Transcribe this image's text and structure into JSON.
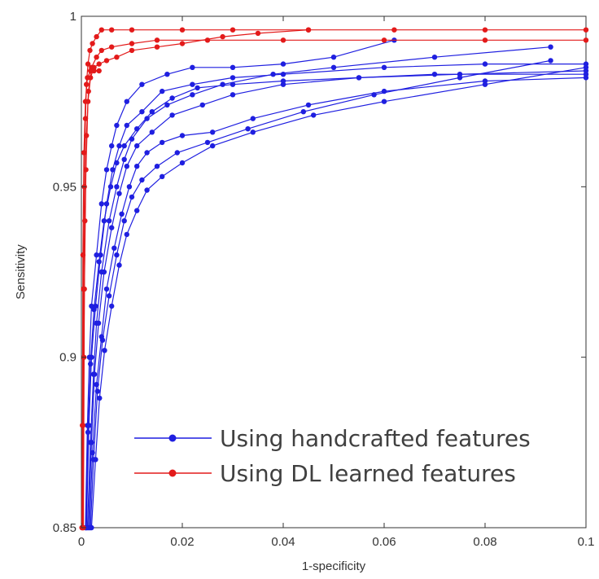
{
  "chart_data": {
    "type": "line",
    "title": "",
    "xlabel": "1-specificity",
    "ylabel": "Sensitivity",
    "xlim": [
      0,
      0.1
    ],
    "ylim": [
      0.85,
      1.0
    ],
    "x_ticks": [
      "0",
      "0.02",
      "0.04",
      "0.06",
      "0.08",
      "0.1"
    ],
    "x_tick_values": [
      0,
      0.02,
      0.04,
      0.06,
      0.08,
      0.1
    ],
    "y_ticks": [
      "0.85",
      "0.9",
      "0.95",
      "1"
    ],
    "y_tick_values": [
      0.85,
      0.9,
      0.95,
      1.0
    ],
    "grid": false,
    "legend_position": "lower-right",
    "legend": [
      {
        "label": "Using handcrafted features",
        "color": "#1f1fe0"
      },
      {
        "label": "Using DL learned features",
        "color": "#e31a1a"
      }
    ],
    "series": [
      {
        "group": "handcrafted",
        "color": "#1f1fe0",
        "x": [
          0.0008,
          0.0012,
          0.0016,
          0.002,
          0.003,
          0.004,
          0.005,
          0.006,
          0.007,
          0.009,
          0.012,
          0.017,
          0.022,
          0.03,
          0.04,
          0.05,
          0.062
        ],
        "y": [
          0.85,
          0.88,
          0.9,
          0.915,
          0.93,
          0.945,
          0.955,
          0.962,
          0.968,
          0.975,
          0.98,
          0.983,
          0.985,
          0.985,
          0.986,
          0.988,
          0.993
        ]
      },
      {
        "group": "handcrafted",
        "color": "#1f1fe0",
        "x": [
          0.001,
          0.0015,
          0.002,
          0.0028,
          0.0038,
          0.005,
          0.0062,
          0.0075,
          0.009,
          0.012,
          0.016,
          0.022,
          0.03,
          0.04,
          0.06,
          0.08,
          0.1
        ],
        "y": [
          0.85,
          0.88,
          0.9,
          0.915,
          0.93,
          0.945,
          0.955,
          0.962,
          0.968,
          0.972,
          0.978,
          0.98,
          0.982,
          0.983,
          0.985,
          0.986,
          0.986
        ]
      },
      {
        "group": "handcrafted",
        "color": "#1f1fe0",
        "x": [
          0.0012,
          0.0018,
          0.0024,
          0.003,
          0.004,
          0.0055,
          0.007,
          0.0085,
          0.01,
          0.013,
          0.017,
          0.022,
          0.028,
          0.038,
          0.05,
          0.07,
          0.093
        ],
        "y": [
          0.85,
          0.875,
          0.895,
          0.91,
          0.925,
          0.94,
          0.95,
          0.958,
          0.964,
          0.97,
          0.974,
          0.977,
          0.98,
          0.983,
          0.985,
          0.988,
          0.991
        ]
      },
      {
        "group": "handcrafted",
        "color": "#1f1fe0",
        "x": [
          0.0014,
          0.002,
          0.0026,
          0.0034,
          0.0045,
          0.006,
          0.0075,
          0.009,
          0.011,
          0.014,
          0.018,
          0.024,
          0.03,
          0.04,
          0.055,
          0.075,
          0.1
        ],
        "y": [
          0.85,
          0.875,
          0.895,
          0.91,
          0.925,
          0.938,
          0.948,
          0.956,
          0.962,
          0.966,
          0.971,
          0.974,
          0.977,
          0.98,
          0.982,
          0.983,
          0.984
        ]
      },
      {
        "group": "handcrafted",
        "color": "#1f1fe0",
        "x": [
          0.0016,
          0.0022,
          0.003,
          0.004,
          0.005,
          0.0065,
          0.008,
          0.0095,
          0.011,
          0.013,
          0.016,
          0.02,
          0.026,
          0.034,
          0.045,
          0.06,
          0.08,
          0.1
        ],
        "y": [
          0.85,
          0.872,
          0.892,
          0.906,
          0.92,
          0.932,
          0.942,
          0.95,
          0.956,
          0.96,
          0.963,
          0.965,
          0.966,
          0.97,
          0.974,
          0.978,
          0.981,
          0.982
        ]
      },
      {
        "group": "handcrafted",
        "color": "#1f1fe0",
        "x": [
          0.0018,
          0.0024,
          0.0032,
          0.0042,
          0.0055,
          0.007,
          0.0085,
          0.01,
          0.012,
          0.015,
          0.019,
          0.025,
          0.033,
          0.044,
          0.058,
          0.075,
          0.093
        ],
        "y": [
          0.85,
          0.87,
          0.89,
          0.905,
          0.918,
          0.93,
          0.94,
          0.947,
          0.952,
          0.956,
          0.96,
          0.963,
          0.967,
          0.972,
          0.977,
          0.982,
          0.987
        ]
      },
      {
        "group": "handcrafted",
        "color": "#1f1fe0",
        "x": [
          0.0009,
          0.0013,
          0.0018,
          0.0025,
          0.0035,
          0.0045,
          0.0058,
          0.007,
          0.0085,
          0.011,
          0.014,
          0.018,
          0.023,
          0.03,
          0.04,
          0.055,
          0.07,
          0.1
        ],
        "y": [
          0.85,
          0.878,
          0.898,
          0.914,
          0.928,
          0.94,
          0.95,
          0.957,
          0.962,
          0.967,
          0.972,
          0.976,
          0.979,
          0.98,
          0.981,
          0.982,
          0.983,
          0.983
        ]
      },
      {
        "group": "handcrafted",
        "color": "#1f1fe0",
        "x": [
          0.002,
          0.0028,
          0.0036,
          0.0046,
          0.006,
          0.0075,
          0.009,
          0.011,
          0.013,
          0.016,
          0.02,
          0.026,
          0.034,
          0.046,
          0.06,
          0.08,
          0.1
        ],
        "y": [
          0.85,
          0.87,
          0.888,
          0.902,
          0.915,
          0.927,
          0.936,
          0.943,
          0.949,
          0.953,
          0.957,
          0.962,
          0.966,
          0.971,
          0.975,
          0.98,
          0.985
        ]
      },
      {
        "group": "dl",
        "color": "#e31a1a",
        "x": [
          0.0002,
          0.0003,
          0.0004,
          0.0006,
          0.0008,
          0.001,
          0.0013,
          0.0017,
          0.0022,
          0.003,
          0.004,
          0.006,
          0.01,
          0.02,
          0.03,
          0.045,
          0.062,
          0.08,
          0.1
        ],
        "y": [
          0.85,
          0.88,
          0.92,
          0.95,
          0.97,
          0.98,
          0.986,
          0.99,
          0.992,
          0.994,
          0.996,
          0.996,
          0.996,
          0.996,
          0.996,
          0.996,
          0.996,
          0.996,
          0.996
        ]
      },
      {
        "group": "dl",
        "color": "#e31a1a",
        "x": [
          0.0003,
          0.0005,
          0.0007,
          0.001,
          0.0014,
          0.002,
          0.003,
          0.004,
          0.006,
          0.01,
          0.015,
          0.025,
          0.04,
          0.06,
          0.08,
          0.1
        ],
        "y": [
          0.85,
          0.9,
          0.94,
          0.965,
          0.978,
          0.985,
          0.988,
          0.99,
          0.991,
          0.992,
          0.993,
          0.993,
          0.993,
          0.993,
          0.993,
          0.993
        ]
      },
      {
        "group": "dl",
        "color": "#e31a1a",
        "x": [
          0.0004,
          0.0006,
          0.0009,
          0.0013,
          0.0018,
          0.0025,
          0.0035,
          0.005,
          0.007,
          0.01,
          0.015,
          0.02,
          0.028,
          0.035,
          0.045
        ],
        "y": [
          0.85,
          0.92,
          0.955,
          0.975,
          0.982,
          0.985,
          0.986,
          0.987,
          0.988,
          0.99,
          0.991,
          0.992,
          0.994,
          0.995,
          0.996
        ]
      },
      {
        "group": "dl",
        "color": "#e31a1a",
        "x": [
          0.0001,
          0.0002,
          0.0003,
          0.0005,
          0.0008,
          0.0012,
          0.0018,
          0.0025,
          0.0035
        ],
        "y": [
          0.85,
          0.88,
          0.93,
          0.96,
          0.975,
          0.982,
          0.984,
          0.984,
          0.984
        ]
      }
    ]
  }
}
